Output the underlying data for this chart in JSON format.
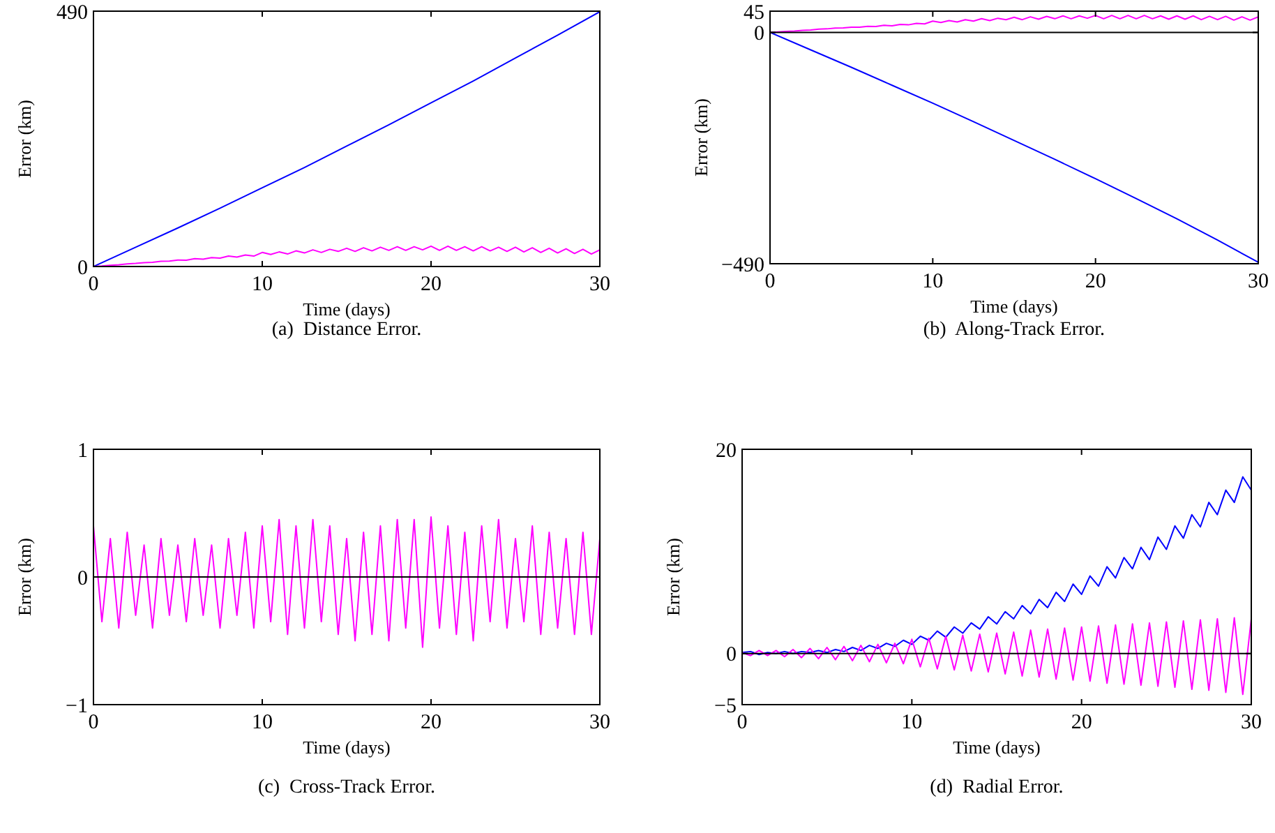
{
  "chart_data": [
    {
      "type": "line",
      "title": "(a)  Distance Error.",
      "xlabel": "Time (days)",
      "ylabel": "Error (km)",
      "xlim": [
        0,
        30
      ],
      "ylim": [
        0,
        490
      ],
      "xticks": [
        0,
        10,
        20,
        30
      ],
      "yticks": [
        0,
        490
      ],
      "x": [
        0,
        0.5,
        1,
        1.5,
        2,
        2.5,
        3,
        3.5,
        4,
        4.5,
        5,
        5.5,
        6,
        6.5,
        7,
        7.5,
        8,
        8.5,
        9,
        9.5,
        10,
        10.5,
        11,
        11.5,
        12,
        12.5,
        13,
        13.5,
        14,
        14.5,
        15,
        15.5,
        16,
        16.5,
        17,
        17.5,
        18,
        18.5,
        19,
        19.5,
        20,
        20.5,
        21,
        21.5,
        22,
        22.5,
        23,
        23.5,
        24,
        24.5,
        25,
        25.5,
        26,
        26.5,
        27,
        27.5,
        28,
        28.5,
        29,
        29.5,
        30
      ],
      "series": [
        {
          "color": "#0000ff",
          "x": [
            0,
            2.5,
            5,
            7.5,
            10,
            12.5,
            15,
            17.5,
            20,
            22.5,
            25,
            27.5,
            30
          ],
          "values": [
            0,
            37,
            74,
            112,
            151,
            190,
            231,
            272,
            314,
            356,
            400,
            444,
            489
          ]
        },
        {
          "color": "#ff00ff",
          "values": [
            0,
            1,
            2.5,
            3.5,
            5,
            6,
            7.5,
            8,
            10,
            10.5,
            12.5,
            12,
            15,
            14,
            17,
            16,
            20,
            18,
            22,
            20,
            27,
            23,
            28,
            24,
            30,
            26,
            32,
            27,
            33,
            29,
            35,
            29,
            36,
            30,
            37,
            31,
            38,
            31,
            38,
            32,
            39,
            31,
            39,
            31,
            38,
            30,
            38,
            30,
            37,
            29,
            37,
            28,
            36,
            27,
            35,
            26,
            34,
            25,
            33,
            24,
            32
          ]
        }
      ]
    },
    {
      "type": "line",
      "title": "(b)  Along-Track Error.",
      "xlabel": "Time (days)",
      "ylabel": "Error (km)",
      "xlim": [
        0,
        30
      ],
      "ylim": [
        -490,
        45
      ],
      "xticks": [
        0,
        10,
        20,
        30
      ],
      "yticks": [
        {
          "value": -490,
          "label": "−490"
        },
        0,
        45
      ],
      "ref_lines": [
        {
          "axis": "y",
          "value": 0,
          "color": "#000000"
        }
      ],
      "x": [
        0,
        0.5,
        1,
        1.5,
        2,
        2.5,
        3,
        3.5,
        4,
        4.5,
        5,
        5.5,
        6,
        6.5,
        7,
        7.5,
        8,
        8.5,
        9,
        9.5,
        10,
        10.5,
        11,
        11.5,
        12,
        12.5,
        13,
        13.5,
        14,
        14.5,
        15,
        15.5,
        16,
        16.5,
        17,
        17.5,
        18,
        18.5,
        19,
        19.5,
        20,
        20.5,
        21,
        21.5,
        22,
        22.5,
        23,
        23.5,
        24,
        24.5,
        25,
        25.5,
        26,
        26.5,
        27,
        27.5,
        28,
        28.5,
        29,
        29.5,
        30
      ],
      "series": [
        {
          "color": "#0000ff",
          "x": [
            0,
            2.5,
            5,
            7.5,
            10,
            12.5,
            15,
            17.5,
            20,
            22.5,
            25,
            27.5,
            30
          ],
          "values": [
            0,
            -37,
            -74,
            -112,
            -150,
            -189,
            -229,
            -269,
            -310,
            -352,
            -395,
            -440,
            -487
          ]
        },
        {
          "color": "#ff00ff",
          "values": [
            0,
            1,
            2,
            3,
            4.5,
            5,
            7,
            7.5,
            9,
            9.5,
            11,
            11,
            13,
            12.5,
            15,
            14,
            17,
            16,
            19,
            18,
            24,
            21,
            25,
            22,
            27,
            24,
            29,
            25,
            30,
            27,
            32,
            27,
            33,
            28,
            34,
            29,
            35,
            29,
            35,
            30,
            36,
            29,
            36,
            29,
            36,
            29,
            36,
            29,
            35,
            28,
            35,
            28,
            35,
            27,
            34,
            27,
            34,
            26,
            33,
            26,
            33
          ]
        }
      ]
    },
    {
      "type": "line",
      "title": "(c)  Cross-Track Error.",
      "xlabel": "Time (days)",
      "ylabel": "Error (km)",
      "xlim": [
        0,
        30
      ],
      "ylim": [
        -1,
        1
      ],
      "xticks": [
        0,
        10,
        20,
        30
      ],
      "yticks": [
        {
          "value": -1,
          "label": "−1"
        },
        0,
        1
      ],
      "ref_lines": [
        {
          "axis": "y",
          "value": 0,
          "color": "#000000"
        }
      ],
      "x": [
        0,
        0.5,
        1,
        1.5,
        2,
        2.5,
        3,
        3.5,
        4,
        4.5,
        5,
        5.5,
        6,
        6.5,
        7,
        7.5,
        8,
        8.5,
        9,
        9.5,
        10,
        10.5,
        11,
        11.5,
        12,
        12.5,
        13,
        13.5,
        14,
        14.5,
        15,
        15.5,
        16,
        16.5,
        17,
        17.5,
        18,
        18.5,
        19,
        19.5,
        20,
        20.5,
        21,
        21.5,
        22,
        22.5,
        23,
        23.5,
        24,
        24.5,
        25,
        25.5,
        26,
        26.5,
        27,
        27.5,
        28,
        28.5,
        29,
        29.5,
        30
      ],
      "series": [
        {
          "color": "#ff00ff",
          "values": [
            0.4,
            -0.35,
            0.3,
            -0.4,
            0.35,
            -0.3,
            0.25,
            -0.4,
            0.3,
            -0.3,
            0.25,
            -0.35,
            0.3,
            -0.3,
            0.25,
            -0.4,
            0.3,
            -0.3,
            0.35,
            -0.4,
            0.4,
            -0.35,
            0.45,
            -0.45,
            0.4,
            -0.4,
            0.45,
            -0.35,
            0.4,
            -0.45,
            0.3,
            -0.5,
            0.35,
            -0.45,
            0.4,
            -0.5,
            0.45,
            -0.4,
            0.45,
            -0.55,
            0.47,
            -0.4,
            0.4,
            -0.45,
            0.35,
            -0.5,
            0.4,
            -0.35,
            0.45,
            -0.4,
            0.3,
            -0.35,
            0.4,
            -0.45,
            0.35,
            -0.4,
            0.3,
            -0.45,
            0.35,
            -0.45,
            0.3
          ]
        }
      ]
    },
    {
      "type": "line",
      "title": "(d)  Radial Error.",
      "xlabel": "Time (days)",
      "ylabel": "Error (km)",
      "xlim": [
        0,
        30
      ],
      "ylim": [
        -5,
        20
      ],
      "xticks": [
        0,
        10,
        20,
        30
      ],
      "yticks": [
        {
          "value": -5,
          "label": "−5"
        },
        0,
        20
      ],
      "ref_lines": [
        {
          "axis": "y",
          "value": 0,
          "color": "#000000"
        }
      ],
      "x": [
        0,
        0.5,
        1,
        1.5,
        2,
        2.5,
        3,
        3.5,
        4,
        4.5,
        5,
        5.5,
        6,
        6.5,
        7,
        7.5,
        8,
        8.5,
        9,
        9.5,
        10,
        10.5,
        11,
        11.5,
        12,
        12.5,
        13,
        13.5,
        14,
        14.5,
        15,
        15.5,
        16,
        16.5,
        17,
        17.5,
        18,
        18.5,
        19,
        19.5,
        20,
        20.5,
        21,
        21.5,
        22,
        22.5,
        23,
        23.5,
        24,
        24.5,
        25,
        25.5,
        26,
        26.5,
        27,
        27.5,
        28,
        28.5,
        29,
        29.5,
        30
      ],
      "series": [
        {
          "color": "#0000ff",
          "values": [
            0.1,
            0.2,
            -0.1,
            0.1,
            0,
            0.2,
            0,
            0.2,
            0.1,
            0.3,
            0.1,
            0.4,
            0.2,
            0.6,
            0.3,
            0.8,
            0.5,
            1.0,
            0.7,
            1.3,
            0.9,
            1.7,
            1.3,
            2.2,
            1.6,
            2.6,
            2.0,
            3.0,
            2.4,
            3.6,
            2.9,
            4.1,
            3.4,
            4.7,
            3.9,
            5.3,
            4.5,
            6.0,
            5.1,
            6.8,
            5.8,
            7.6,
            6.6,
            8.5,
            7.4,
            9.4,
            8.3,
            10.4,
            9.2,
            11.4,
            10.2,
            12.5,
            11.3,
            13.6,
            12.4,
            14.8,
            13.6,
            16.0,
            14.8,
            17.3,
            16.0
          ]
        },
        {
          "color": "#ff00ff",
          "values": [
            0.1,
            -0.2,
            0.3,
            -0.2,
            0.3,
            -0.3,
            0.4,
            -0.4,
            0.5,
            -0.5,
            0.6,
            -0.6,
            0.7,
            -0.7,
            0.8,
            -0.8,
            0.9,
            -0.9,
            1.0,
            -1.0,
            1.4,
            -1.3,
            1.5,
            -1.5,
            1.7,
            -1.6,
            1.8,
            -1.7,
            1.9,
            -1.8,
            2.0,
            -2.0,
            2.1,
            -2.2,
            2.3,
            -2.3,
            2.4,
            -2.5,
            2.5,
            -2.6,
            2.6,
            -2.7,
            2.7,
            -2.9,
            2.8,
            -3.0,
            2.9,
            -3.1,
            3.0,
            -3.2,
            3.1,
            -3.3,
            3.2,
            -3.5,
            3.3,
            -3.6,
            3.4,
            -3.8,
            3.5,
            -4.0,
            3.4
          ]
        }
      ]
    }
  ]
}
